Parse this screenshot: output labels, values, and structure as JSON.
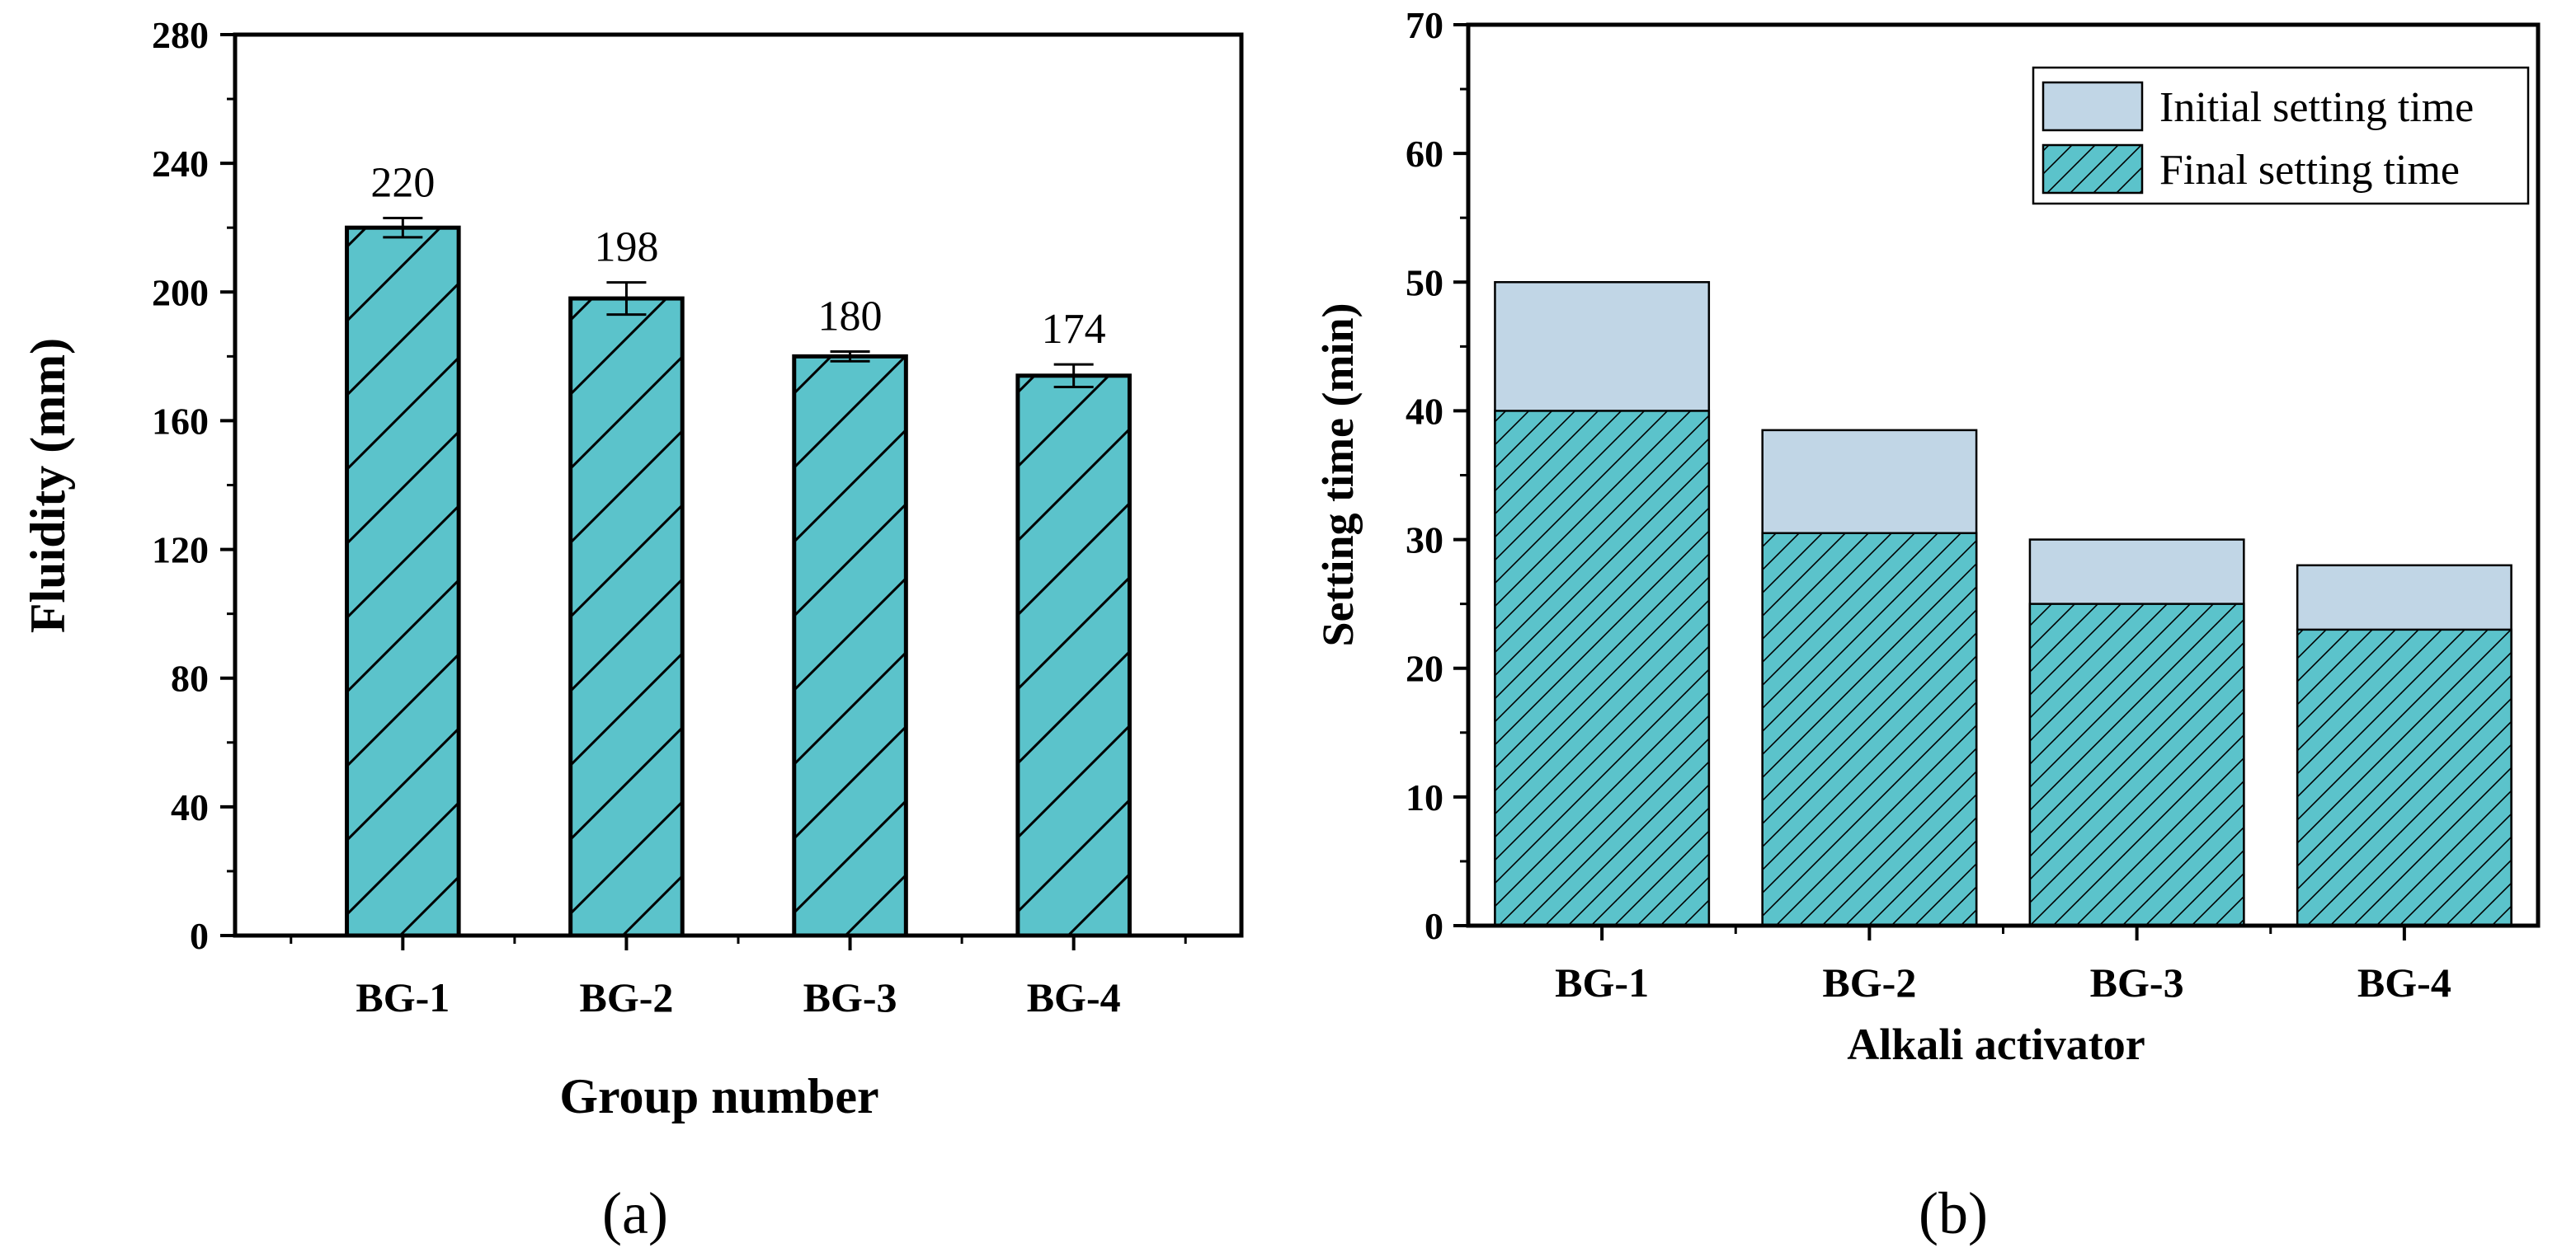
{
  "chart_data": [
    {
      "panel": "(a)",
      "type": "bar",
      "categories": [
        "BG-1",
        "BG-2",
        "BG-3",
        "BG-4"
      ],
      "values": [
        220,
        198,
        180,
        174
      ],
      "errors": [
        3,
        5,
        1.5,
        3.5
      ],
      "data_labels": [
        "220",
        "198",
        "180",
        "174"
      ],
      "xlabel": "Group number",
      "ylabel": "Fluidity (mm)",
      "ylim": [
        0,
        280
      ],
      "yticks": [
        0,
        40,
        80,
        120,
        160,
        200,
        240,
        280
      ],
      "bar_color": "#5bc3cb",
      "hatch": "diagonal"
    },
    {
      "panel": "(b)",
      "type": "bar",
      "stacking": "overlay",
      "categories": [
        "BG-1",
        "BG-2",
        "BG-3",
        "BG-4"
      ],
      "series": [
        {
          "name": "Initial setting time",
          "values": [
            50,
            38.5,
            30,
            28
          ],
          "color": "#c1d6e6"
        },
        {
          "name": "Final setting time",
          "values": [
            40,
            30.5,
            25,
            23
          ],
          "color": "#5bc3cb",
          "hatch": "diagonal"
        }
      ],
      "xlabel": "Alkali activator",
      "ylabel": "Setting time (min)",
      "ylim": [
        0,
        70
      ],
      "yticks": [
        0,
        10,
        20,
        30,
        40,
        50,
        60,
        70
      ],
      "legend_position": "top-right"
    }
  ]
}
